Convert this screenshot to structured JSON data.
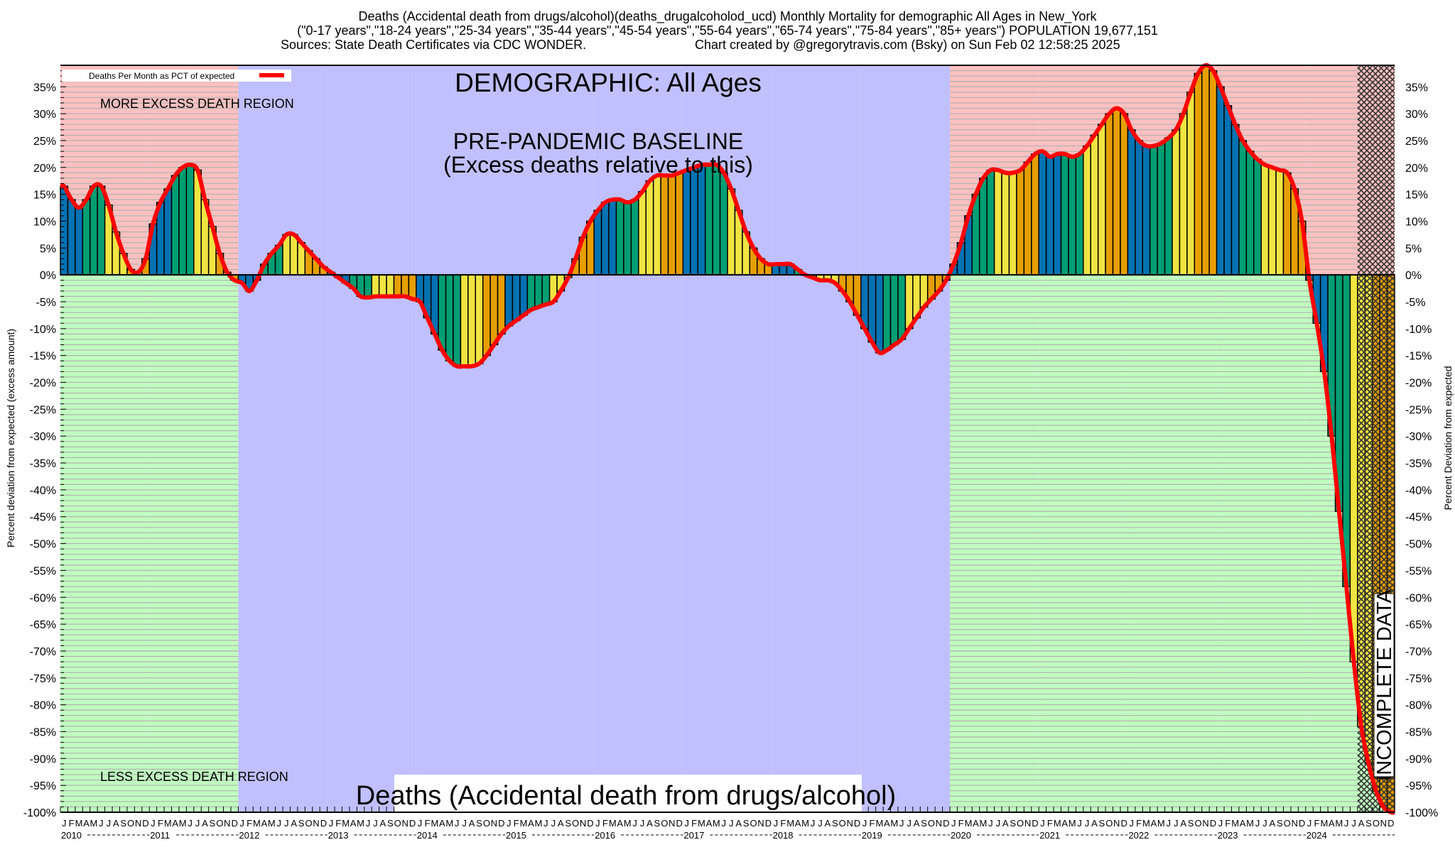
{
  "header": {
    "title_line1": "Deaths (Accidental death from drugs/alcohol)(deaths_drugalcoholod_ucd) Monthly Mortality for demographic All Ages in New_York",
    "title_line2": "(\"0-17 years\",\"18-24 years\",\"25-34 years\",\"35-44 years\",\"45-54 years\",\"55-64 years\",\"65-74 years\",\"75-84 years\",\"85+ years\") POPULATION 19,677,151",
    "sources": "Sources: State Death Certificates via CDC WONDER.",
    "credit": "Chart created by @gregorytravis.com (Bsky) on Sun Feb 02 12:58:25 2025"
  },
  "annotations": {
    "demographic": "DEMOGRAPHIC: All Ages",
    "baseline_line1": "PRE-PANDEMIC BASELINE",
    "baseline_line2": "(Excess deaths relative to this)",
    "more_region": "MORE EXCESS DEATH REGION",
    "less_region": "LESS EXCESS DEATH REGION",
    "bottom_label": "Deaths (Accidental death from drugs/alcohol)",
    "incomplete": "INCOMPLETE DATA"
  },
  "legend": {
    "label": "Deaths Per Month as PCT of expected",
    "position": "top-left"
  },
  "colors": {
    "excess_region": "#ffc0c0",
    "less_region": "#c0ffc0",
    "baseline_region": "#c0c0ff",
    "q1": "#0072b2",
    "q2": "#009e73",
    "q3": "#f0e442",
    "q4": "#e69f00",
    "line": "#ff0000",
    "grid": "#b4b4b4"
  },
  "chart_data": {
    "type": "bar",
    "ylabel_left": "Percent deviation from expected (excess amount)",
    "ylabel_right": "Percent Deviation from expected",
    "ylim": [
      -100,
      39
    ],
    "yticks": [
      "35%",
      "30%",
      "25%",
      "20%",
      "15%",
      "10%",
      "5%",
      "0%",
      "-5%",
      "-10%",
      "-15%",
      "-20%",
      "-25%",
      "-30%",
      "-35%",
      "-40%",
      "-45%",
      "-50%",
      "-55%",
      "-60%",
      "-65%",
      "-70%",
      "-75%",
      "-80%",
      "-85%",
      "-90%",
      "-95%",
      "-100%"
    ],
    "ytick_values": [
      35,
      30,
      25,
      20,
      15,
      10,
      5,
      0,
      -5,
      -10,
      -15,
      -20,
      -25,
      -30,
      -35,
      -40,
      -45,
      -50,
      -55,
      -60,
      -65,
      -70,
      -75,
      -80,
      -85,
      -90,
      -95,
      -100
    ],
    "grid": true,
    "month_letters": [
      "J",
      "F",
      "M",
      "A",
      "M",
      "J",
      "J",
      "A",
      "S",
      "O",
      "N",
      "D"
    ],
    "years": [
      "2010",
      "2011",
      "2012",
      "2013",
      "2014",
      "2015",
      "2016",
      "2017",
      "2018",
      "2019",
      "2020",
      "2021",
      "2022",
      "2023",
      "2024"
    ],
    "baseline_years": [
      "2012",
      "2013",
      "2014",
      "2015",
      "2016",
      "2017",
      "2018",
      "2019"
    ],
    "incomplete_from": "2024-08",
    "values": [
      16.5,
      14,
      12.5,
      14,
      16.5,
      16.5,
      13,
      8,
      4,
      1,
      0.5,
      3,
      9.5,
      13.5,
      16,
      18.5,
      20,
      20.5,
      19.5,
      14,
      9,
      4,
      0.5,
      -1,
      -1.5,
      -3,
      -1,
      2,
      4,
      5.5,
      7.5,
      7.5,
      6,
      4.5,
      3,
      1.5,
      0.5,
      -0.5,
      -1.5,
      -2.5,
      -4,
      -4.2,
      -4,
      -4,
      -4,
      -4,
      -4,
      -4.5,
      -5,
      -8,
      -11,
      -14,
      -16,
      -17,
      -17,
      -17,
      -16.5,
      -15,
      -13,
      -11,
      -9.5,
      -8.5,
      -7.5,
      -6.5,
      -6,
      -5.5,
      -5,
      -3,
      -0.5,
      3,
      7,
      10,
      12,
      13.5,
      14,
      14,
      13.5,
      14,
      15.5,
      17.5,
      18.5,
      18.5,
      18.5,
      19,
      19.5,
      20,
      20.5,
      20.5,
      20.5,
      19,
      16,
      12,
      8,
      5,
      3,
      2,
      2,
      2,
      2,
      1,
      0,
      -0.5,
      -1,
      -1,
      -1.5,
      -3,
      -5,
      -7.5,
      -10,
      -12.5,
      -14.5,
      -14,
      -13,
      -12,
      -10,
      -8,
      -6,
      -4.5,
      -3,
      -1,
      2,
      6,
      11,
      15,
      18,
      19.5,
      19.5,
      19,
      19,
      19.5,
      21,
      22.5,
      23,
      22,
      22.5,
      22.5,
      22,
      22.5,
      24,
      26,
      28,
      30,
      31,
      30,
      27,
      25,
      24,
      24,
      24.5,
      25.5,
      27,
      30,
      34,
      37.5,
      39,
      38,
      35,
      31.5,
      28,
      25,
      23,
      21.5,
      20.5,
      20,
      19.5,
      19,
      16,
      10,
      -1,
      -9,
      -18,
      -30,
      -44,
      -58,
      -72,
      -84,
      -91,
      -96,
      -99,
      -100
    ]
  }
}
